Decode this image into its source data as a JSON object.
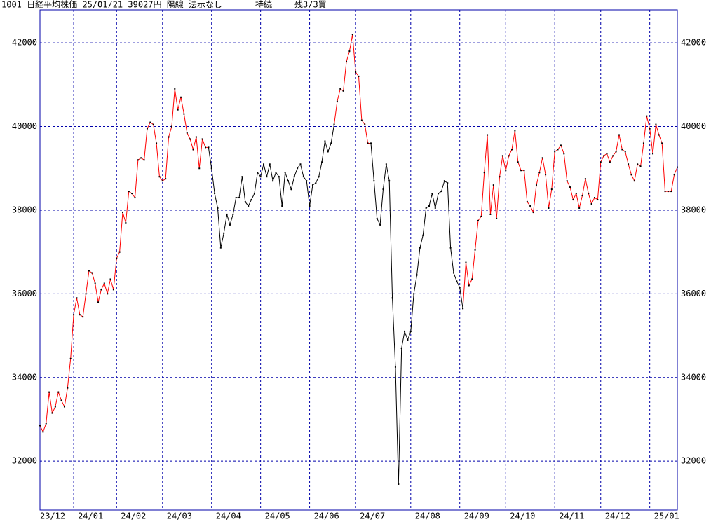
{
  "chart_data": {
    "type": "line",
    "title": "1001 日経平均株価 25/01/21 39027円 陽線 法示なし",
    "status": "持続",
    "position": "残3/3買",
    "xlim": [
      0,
      208
    ],
    "xticks": [
      {
        "value": 0,
        "label": "23/12"
      },
      {
        "value": 11,
        "label": "24/01"
      },
      {
        "value": 25,
        "label": "24/02"
      },
      {
        "value": 40,
        "label": "24/03"
      },
      {
        "value": 56,
        "label": "24/04"
      },
      {
        "value": 72,
        "label": "24/05"
      },
      {
        "value": 88,
        "label": "24/06"
      },
      {
        "value": 103,
        "label": "24/07"
      },
      {
        "value": 121,
        "label": "24/08"
      },
      {
        "value": 137,
        "label": "24/09"
      },
      {
        "value": 152,
        "label": "24/10"
      },
      {
        "value": 168,
        "label": "24/11"
      },
      {
        "value": 183,
        "label": "24/12"
      },
      {
        "value": 199,
        "label": "25/01"
      }
    ],
    "ylim": [
      30830,
      42790
    ],
    "yticks": [
      32000,
      34000,
      36000,
      38000,
      40000,
      42000
    ],
    "grid": true,
    "grid_color": "#0000aa",
    "marker_color": "#000000",
    "series": [
      {
        "color": "#ff0000",
        "values": [
          32850,
          32700,
          32900,
          33650,
          33150,
          33300,
          33650,
          33450,
          33300,
          33750,
          34450,
          35500,
          35900,
          35500,
          35450,
          36000,
          36550,
          36500,
          36250,
          35800,
          36100,
          36250,
          36000,
          36350,
          36100,
          36850,
          37000,
          37950,
          37700,
          38450,
          38400,
          38300,
          39200,
          39250,
          39200,
          39950,
          40100,
          40050,
          39600,
          38800,
          38700,
          38750,
          39750,
          40000,
          40900,
          40400,
          40700,
          40300,
          39850,
          39700,
          39450,
          39750,
          39000,
          39700,
          39500,
          39500,
          null,
          null,
          null,
          null,
          null,
          null,
          null,
          null,
          null,
          null,
          null,
          null,
          null,
          null,
          null,
          null,
          null,
          null,
          null,
          null,
          null,
          null,
          null,
          null,
          null,
          null,
          null,
          null,
          null,
          null,
          null,
          null,
          null,
          null,
          null,
          null,
          null,
          null,
          null,
          null,
          40050,
          40600,
          40900,
          40850,
          41550,
          41800,
          42200,
          41300,
          41200,
          40150,
          40050,
          39600,
          39600,
          null,
          null,
          null,
          null,
          null,
          null,
          null,
          null,
          null,
          null,
          null,
          null,
          null,
          null,
          null,
          null,
          null,
          null,
          null,
          null,
          null,
          null,
          null,
          null,
          null,
          null,
          null,
          null,
          null,
          35650,
          36750,
          36200,
          36350,
          37050,
          37750,
          37850,
          38900,
          39800,
          37900,
          38600,
          37800,
          38800,
          39300,
          38950,
          39300,
          39450,
          39900,
          39150,
          38950,
          38950,
          38200,
          38100,
          37950,
          38600,
          38900,
          39250,
          38850,
          38050,
          38500,
          39400,
          39450,
          39550,
          39350,
          38700,
          38550,
          38250,
          38400,
          38050,
          38350,
          38750,
          38400,
          38150,
          38300,
          38250,
          39150,
          39300,
          39350,
          39150,
          39300,
          39400,
          39800,
          39450,
          39400,
          39100,
          38850,
          38700,
          39100,
          39050,
          39600,
          40250,
          39950,
          39350,
          40050,
          39800,
          39600,
          38450,
          38450,
          38450,
          38850,
          39027
        ]
      },
      {
        "color": "#000000",
        "values": [
          null,
          null,
          null,
          null,
          null,
          null,
          null,
          null,
          null,
          null,
          null,
          null,
          null,
          null,
          null,
          null,
          null,
          null,
          null,
          null,
          null,
          null,
          null,
          null,
          null,
          null,
          null,
          null,
          null,
          null,
          null,
          null,
          null,
          null,
          null,
          null,
          null,
          null,
          null,
          null,
          null,
          null,
          null,
          null,
          null,
          null,
          null,
          null,
          null,
          null,
          null,
          null,
          null,
          null,
          null,
          39500,
          39000,
          38400,
          38050,
          37100,
          37450,
          37900,
          37650,
          37900,
          38300,
          38300,
          38800,
          38200,
          38100,
          38250,
          38400,
          38900,
          38800,
          39100,
          38800,
          39100,
          38700,
          38900,
          38800,
          38100,
          38900,
          38700,
          38500,
          38800,
          39000,
          39100,
          38800,
          38700,
          38100,
          38600,
          38650,
          38800,
          39150,
          39650,
          39400,
          39600,
          40050,
          null,
          null,
          null,
          null,
          null,
          null,
          null,
          null,
          null,
          null,
          null,
          39600,
          38700,
          37800,
          37650,
          38500,
          39100,
          38700,
          35900,
          34250,
          31450,
          34700,
          35100,
          34900,
          35100,
          36000,
          36450,
          37100,
          37400,
          38050,
          38100,
          38400,
          38050,
          38400,
          38450,
          38700,
          38650,
          37100,
          36500,
          36300,
          36150,
          35650,
          null,
          null,
          null,
          null,
          null,
          null,
          null,
          null,
          null,
          null,
          null,
          null,
          null,
          null,
          null,
          null,
          null,
          null,
          null,
          null,
          null,
          null,
          null,
          null,
          null,
          null,
          null,
          null,
          null,
          null,
          null,
          null,
          null,
          null,
          null,
          null,
          null,
          null,
          null,
          null,
          null,
          null,
          null,
          null,
          null,
          null,
          null,
          null,
          null,
          null,
          null,
          null,
          null,
          null,
          null,
          null,
          null,
          null,
          null,
          null,
          null,
          null,
          null,
          null,
          null,
          null,
          null,
          null,
          null,
          null
        ]
      }
    ]
  }
}
